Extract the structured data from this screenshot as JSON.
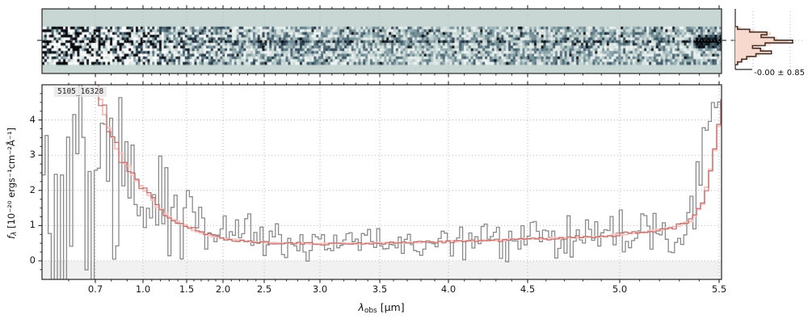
{
  "title_label": "5105_16328",
  "axes": {
    "xlabel": {
      "symbol": "λ",
      "sub": "obs",
      "unit": " [μm]"
    },
    "ylabel": {
      "symbol": "f",
      "sub": "λ",
      "unit": " [10⁻²⁰ ergs⁻¹cm⁻²Å⁻¹]"
    },
    "x_tick_values": [
      0.7,
      1.0,
      1.5,
      2.0,
      2.5,
      3.0,
      3.5,
      4.0,
      4.5,
      5.0,
      5.5
    ],
    "x_tick_labels": [
      "0.7",
      "1.0",
      "1.5",
      "2.0",
      "2.5",
      "3.0",
      "3.5",
      "4.0",
      "4.5",
      "5.0",
      "5.5"
    ],
    "y_tick_values": [
      0,
      1,
      2,
      3,
      4
    ],
    "y_tick_labels": [
      "0",
      "1",
      "2",
      "3",
      "4"
    ],
    "xlim": [
      0.6,
      5.52
    ],
    "ylim": [
      -0.53,
      5.0
    ]
  },
  "colors": {
    "flux_gray": "#8a8a8a",
    "err_pink": "#f5c6c3",
    "err_dark": "#bd6f6a",
    "heatmap_bg": "#c8d7d4",
    "hist_fill": "#f8d9cd",
    "hist_outline": "#46312a",
    "grid": "#b8b8b8",
    "below_zero_band": "#f1f1f1",
    "spine": "#262626"
  },
  "chart_data": [
    {
      "id": "spectrum_2d_cutout",
      "type": "heatmap",
      "x_range_um": [
        0.6,
        5.52
      ],
      "grid": true,
      "noise_contrast_anchors": {
        "x_um": [
          0.6,
          0.8,
          1.0,
          1.3,
          1.8,
          2.5,
          3.5,
          4.5,
          5.52
        ],
        "contrast": [
          1.8,
          1.6,
          1.2,
          0.95,
          0.75,
          0.62,
          0.55,
          0.52,
          0.55
        ]
      },
      "trace_darkness_anchors": {
        "x_um": [
          0.6,
          0.9,
          1.1,
          1.5,
          2.0,
          3.0,
          4.0,
          5.0,
          5.35,
          5.45,
          5.52
        ],
        "dark": [
          0.05,
          0.25,
          0.45,
          0.5,
          0.45,
          0.4,
          0.3,
          0.25,
          0.3,
          0.85,
          0.9
        ]
      }
    },
    {
      "id": "spectrum_1d",
      "type": "line",
      "title": "5105_16328",
      "xlabel": "λ_obs [μm]",
      "ylabel": "f_λ [10⁻²⁰ ergs⁻¹cm⁻²Å⁻¹]",
      "xlim": [
        0.6,
        5.52
      ],
      "ylim": [
        -0.53,
        5.0
      ],
      "grid": true,
      "legend": "none",
      "series": [
        {
          "name": "flux_steps",
          "style": "step-noisy",
          "x": [
            0.6,
            0.7,
            0.85,
            1.0,
            1.2,
            1.5,
            1.8,
            2.2,
            2.6,
            3.0,
            3.5,
            4.0,
            4.5,
            5.0,
            5.3,
            5.4,
            5.45,
            5.49,
            5.52
          ],
          "y_median": [
            2.0,
            2.0,
            2.1,
            1.8,
            1.5,
            1.2,
            0.95,
            0.7,
            0.55,
            0.5,
            0.55,
            0.55,
            0.6,
            0.7,
            0.85,
            2.2,
            4.6,
            4.4,
            4.3
          ],
          "noise_amplitude": [
            5.0,
            5.0,
            3.6,
            2.2,
            1.3,
            0.95,
            0.75,
            0.6,
            0.45,
            0.42,
            0.45,
            0.5,
            0.55,
            0.6,
            0.7,
            1.8,
            0.9,
            0.5,
            0.4
          ]
        },
        {
          "name": "uncertainty_steps",
          "style": "step",
          "x": [
            0.6,
            0.7,
            0.75,
            0.8,
            0.85,
            0.9,
            1.0,
            1.1,
            1.2,
            1.35,
            1.5,
            1.7,
            2.0,
            2.3,
            2.7,
            3.0,
            3.5,
            4.0,
            4.3,
            4.6,
            4.9,
            5.1,
            5.25,
            5.35,
            5.42,
            5.47,
            5.52
          ],
          "y": [
            7.5,
            5.4,
            4.3,
            3.6,
            3.05,
            2.7,
            2.1,
            1.75,
            1.45,
            1.15,
            0.97,
            0.8,
            0.63,
            0.55,
            0.5,
            0.48,
            0.5,
            0.55,
            0.58,
            0.63,
            0.7,
            0.8,
            0.92,
            1.1,
            1.6,
            2.95,
            4.35
          ]
        }
      ]
    },
    {
      "id": "pixel_value_histogram",
      "type": "histogram",
      "orientation": "horizontal",
      "annotation": "-0.00 ± 0.85",
      "bar_fractions": [
        0.04,
        0.25,
        0.55,
        0.45,
        0.68,
        1.0,
        0.52,
        0.3,
        0.44,
        0.63,
        0.36,
        0.2,
        0.11,
        0.04
      ],
      "fill_fractions": [
        0.1,
        0.34,
        0.62,
        0.58,
        0.74,
        0.93,
        0.62,
        0.42,
        0.5,
        0.6,
        0.42,
        0.26,
        0.14,
        0.07
      ]
    }
  ]
}
